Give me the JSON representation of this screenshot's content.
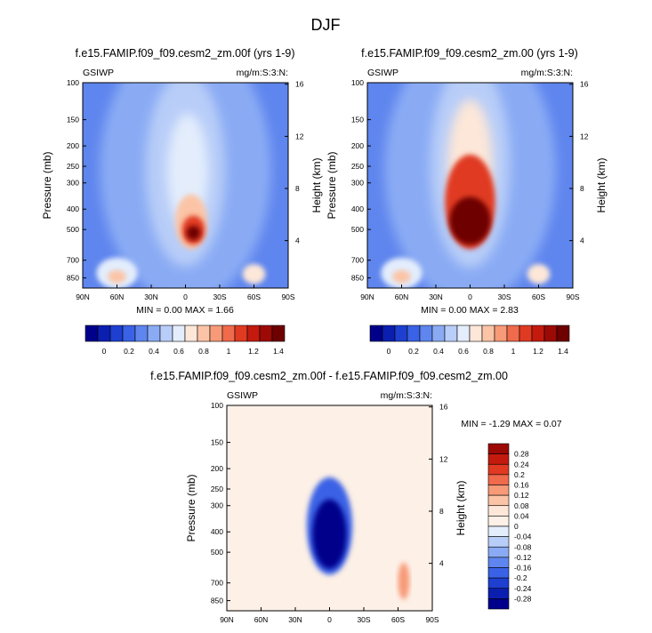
{
  "page_title": "DJF",
  "chart_data": [
    {
      "type": "heatmap",
      "title": "f.e15.FAMIP.f09_f09.cesm2_zm.00f (yrs 1-9)",
      "left_label": "GSIWP",
      "right_label": "mg/m:S:3:N:",
      "xlabel": "",
      "ylabel": "Pressure (mb)",
      "y2label": "Height (km)",
      "x_ticks": [
        "90N",
        "60N",
        "30N",
        "0",
        "30S",
        "60S",
        "90S"
      ],
      "x_values": [
        90,
        60,
        30,
        0,
        -30,
        -60,
        -90
      ],
      "y_ticks": [
        "100",
        "150",
        "200",
        "250",
        "300",
        "400",
        "500",
        "700",
        "850"
      ],
      "y_values": [
        100,
        150,
        200,
        250,
        300,
        400,
        500,
        700,
        850
      ],
      "y2_ticks": [
        "16",
        "12",
        "8",
        "4"
      ],
      "y2_values": [
        16,
        12,
        8,
        4
      ],
      "ylim": [
        100,
        950
      ],
      "stats": {
        "min_label": "MIN =",
        "min": "0.00",
        "max_label": "MAX =",
        "max": "1.66"
      },
      "levels": [
        "0",
        "0.2",
        "0.4",
        "0.6",
        "0.8",
        "1",
        "1.2",
        "1.4"
      ],
      "colors": [
        "#00008b",
        "#0a1fb0",
        "#1e3fd0",
        "#3a62e6",
        "#5f86ee",
        "#8aabf4",
        "#b8cdf8",
        "#e3edfc",
        "#fde7d8",
        "#fbc4a6",
        "#f79a78",
        "#f06a4c",
        "#e03a22",
        "#c41a0e",
        "#9c0a06",
        "#6e0000"
      ]
    },
    {
      "type": "heatmap",
      "title": "f.e15.FAMIP.f09_f09.cesm2_zm.00 (yrs 1-9)",
      "left_label": "GSIWP",
      "right_label": "mg/m:S:3:N:",
      "xlabel": "",
      "ylabel": "Pressure (mb)",
      "y2label": "Height (km)",
      "x_ticks": [
        "90N",
        "60N",
        "30N",
        "0",
        "30S",
        "60S",
        "90S"
      ],
      "x_values": [
        90,
        60,
        30,
        0,
        -30,
        -60,
        -90
      ],
      "y_ticks": [
        "100",
        "150",
        "200",
        "250",
        "300",
        "400",
        "500",
        "700",
        "850"
      ],
      "y_values": [
        100,
        150,
        200,
        250,
        300,
        400,
        500,
        700,
        850
      ],
      "y2_ticks": [
        "16",
        "12",
        "8",
        "4"
      ],
      "y2_values": [
        16,
        12,
        8,
        4
      ],
      "ylim": [
        100,
        950
      ],
      "stats": {
        "min_label": "MIN =",
        "min": "0.00",
        "max_label": "MAX =",
        "max": "2.83"
      },
      "levels": [
        "0",
        "0.2",
        "0.4",
        "0.6",
        "0.8",
        "1",
        "1.2",
        "1.4"
      ],
      "colors": [
        "#00008b",
        "#0a1fb0",
        "#1e3fd0",
        "#3a62e6",
        "#5f86ee",
        "#8aabf4",
        "#b8cdf8",
        "#e3edfc",
        "#fde7d8",
        "#fbc4a6",
        "#f79a78",
        "#f06a4c",
        "#e03a22",
        "#c41a0e",
        "#9c0a06",
        "#6e0000"
      ]
    },
    {
      "type": "heatmap",
      "title": "f.e15.FAMIP.f09_f09.cesm2_zm.00f - f.e15.FAMIP.f09_f09.cesm2_zm.00",
      "left_label": "GSIWP",
      "right_label": "mg/m:S:3:N:",
      "xlabel": "",
      "ylabel": "Pressure (mb)",
      "y2label": "Height (km)",
      "x_ticks": [
        "90N",
        "60N",
        "30N",
        "0",
        "30S",
        "60S",
        "90S"
      ],
      "x_values": [
        90,
        60,
        30,
        0,
        -30,
        -60,
        -90
      ],
      "y_ticks": [
        "100",
        "150",
        "200",
        "250",
        "300",
        "400",
        "500",
        "700",
        "850"
      ],
      "y_values": [
        100,
        150,
        200,
        250,
        300,
        400,
        500,
        700,
        850
      ],
      "y2_ticks": [
        "16",
        "12",
        "8",
        "4"
      ],
      "y2_values": [
        16,
        12,
        8,
        4
      ],
      "ylim": [
        100,
        950
      ],
      "stats": {
        "min_label": "MIN =",
        "min": "-1.29",
        "max_label": "MAX =",
        "max": "0.07"
      },
      "levels": [
        "0.28",
        "0.24",
        "0.2",
        "0.16",
        "0.12",
        "0.08",
        "0.04",
        "0",
        "-0.04",
        "-0.08",
        "-0.12",
        "-0.16",
        "-0.2",
        "-0.24",
        "-0.28"
      ],
      "colors": [
        "#9c0a06",
        "#c41a0e",
        "#e03a22",
        "#f06a4c",
        "#f79a78",
        "#fbc4a6",
        "#fde7d8",
        "#fdf0e6",
        "#e3edfc",
        "#b8cdf8",
        "#8aabf4",
        "#5f86ee",
        "#3a62e6",
        "#1e3fd0",
        "#0a1fb0",
        "#00008b"
      ]
    }
  ]
}
